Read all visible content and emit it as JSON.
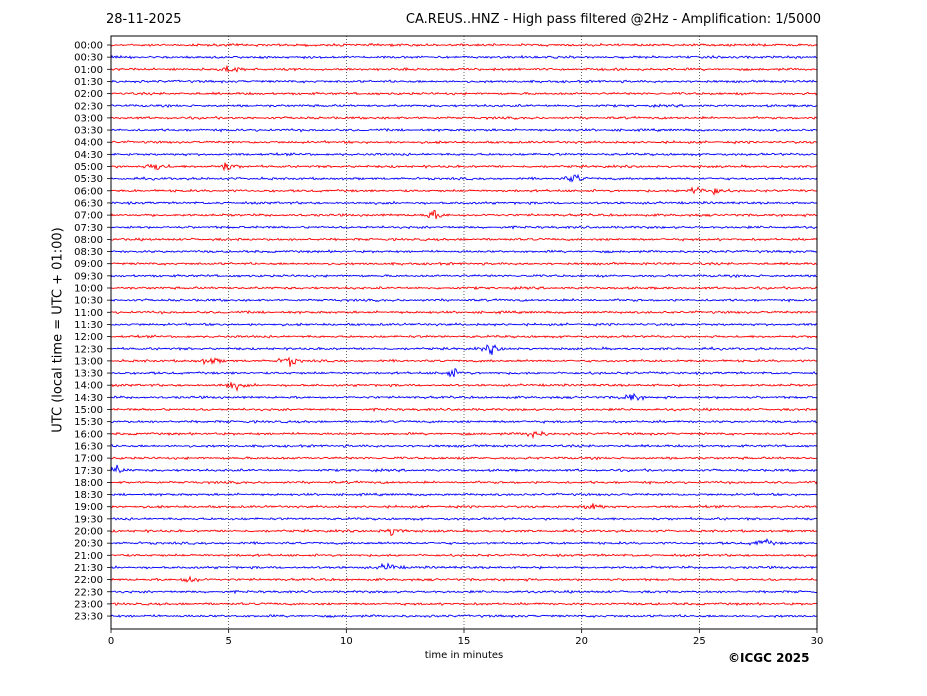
{
  "header": {
    "date": "28-11-2025",
    "title": "CA.REUS..HNZ - High pass filtered @2Hz - Amplification: 1/5000"
  },
  "footer": {
    "copyright": "©ICGC 2025"
  },
  "colors": {
    "even_row": "#ff0000",
    "odd_row": "#0000ff",
    "grid": "#000000"
  },
  "chart_data": {
    "type": "line",
    "title": "CA.REUS..HNZ - High pass filtered @2Hz - Amplification: 1/5000",
    "xlabel": "time in minutes",
    "ylabel": "UTC (local time = UTC + 01:00)",
    "xlim": [
      0,
      30
    ],
    "x_ticks": [
      0,
      5,
      10,
      15,
      20,
      25,
      30
    ],
    "grid": "vertical dotted at 5-minute ticks",
    "rows": [
      "00:00",
      "00:30",
      "01:00",
      "01:30",
      "02:00",
      "02:30",
      "03:00",
      "03:30",
      "04:00",
      "04:30",
      "05:00",
      "05:30",
      "06:00",
      "06:30",
      "07:00",
      "07:30",
      "08:00",
      "08:30",
      "09:00",
      "09:30",
      "10:00",
      "10:30",
      "11:00",
      "11:30",
      "12:00",
      "12:30",
      "13:00",
      "13:30",
      "14:00",
      "14:30",
      "15:00",
      "15:30",
      "16:00",
      "16:30",
      "17:00",
      "17:30",
      "18:00",
      "18:30",
      "19:00",
      "19:30",
      "20:00",
      "20:30",
      "21:00",
      "21:30",
      "22:00",
      "22:30",
      "23:00",
      "23:30"
    ],
    "row_colors": [
      "red",
      "blue"
    ],
    "events": [
      {
        "row": "01:00",
        "minute": 5.1
      },
      {
        "row": "05:00",
        "minute": 2.0
      },
      {
        "row": "05:00",
        "minute": 4.9
      },
      {
        "row": "05:30",
        "minute": 19.7
      },
      {
        "row": "06:00",
        "minute": 24.7
      },
      {
        "row": "06:00",
        "minute": 25.6
      },
      {
        "row": "07:00",
        "minute": 13.7
      },
      {
        "row": "12:30",
        "minute": 16.2
      },
      {
        "row": "13:00",
        "minute": 4.2
      },
      {
        "row": "13:00",
        "minute": 7.6
      },
      {
        "row": "13:30",
        "minute": 14.5
      },
      {
        "row": "14:00",
        "minute": 5.2
      },
      {
        "row": "14:30",
        "minute": 22.1
      },
      {
        "row": "16:00",
        "minute": 18.0
      },
      {
        "row": "17:30",
        "minute": 0.2
      },
      {
        "row": "19:00",
        "minute": 20.5
      },
      {
        "row": "20:00",
        "minute": 12.0
      },
      {
        "row": "20:30",
        "minute": 27.7
      },
      {
        "row": "21:30",
        "minute": 11.8
      },
      {
        "row": "22:00",
        "minute": 3.4
      }
    ]
  }
}
